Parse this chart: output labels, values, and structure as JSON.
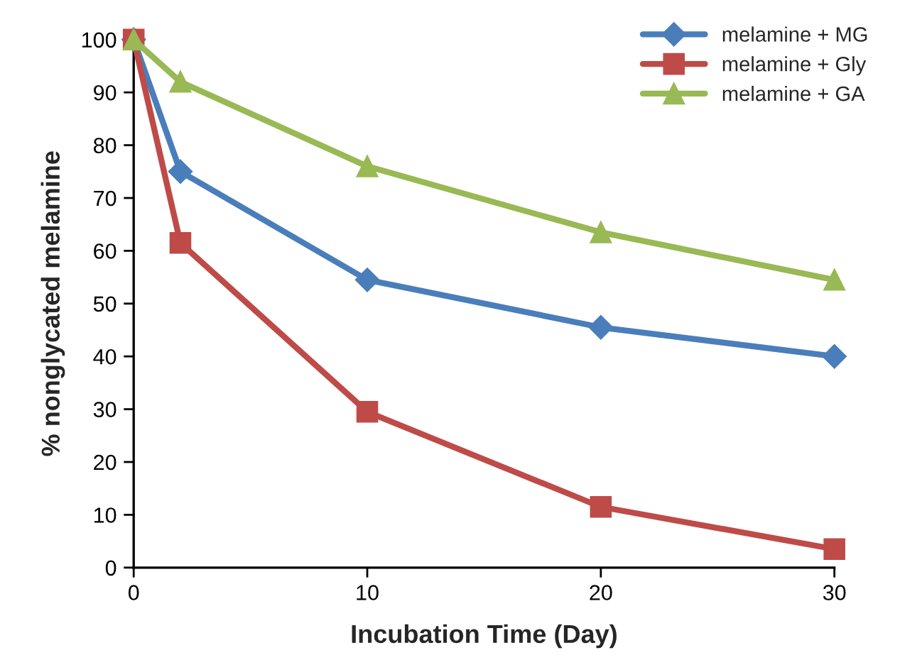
{
  "chart_data": {
    "type": "line",
    "xlabel": "Incubation Time (Day)",
    "ylabel": "% nonglycated melamine",
    "x": [
      0,
      2,
      10,
      20,
      30
    ],
    "series": [
      {
        "name": "melamine + MG",
        "color": "#4a7ebb",
        "marker": "diamond",
        "values": [
          100,
          75,
          54.5,
          45.5,
          40
        ]
      },
      {
        "name": "melamine + Gly",
        "color": "#be4b48",
        "marker": "square",
        "values": [
          100,
          61.5,
          29.5,
          11.5,
          3.5
        ]
      },
      {
        "name": "melamine + GA",
        "color": "#98b954",
        "marker": "triangle",
        "values": [
          100,
          92,
          76,
          63.5,
          54.5
        ]
      }
    ],
    "xlim": [
      0,
      30
    ],
    "xticks": [
      0,
      10,
      20,
      30
    ],
    "ylim": [
      0,
      100
    ],
    "yticks": [
      0,
      10,
      20,
      30,
      40,
      50,
      60,
      70,
      80,
      90,
      100
    ],
    "grid": false,
    "legend": "top right",
    "line_style": "solid"
  }
}
